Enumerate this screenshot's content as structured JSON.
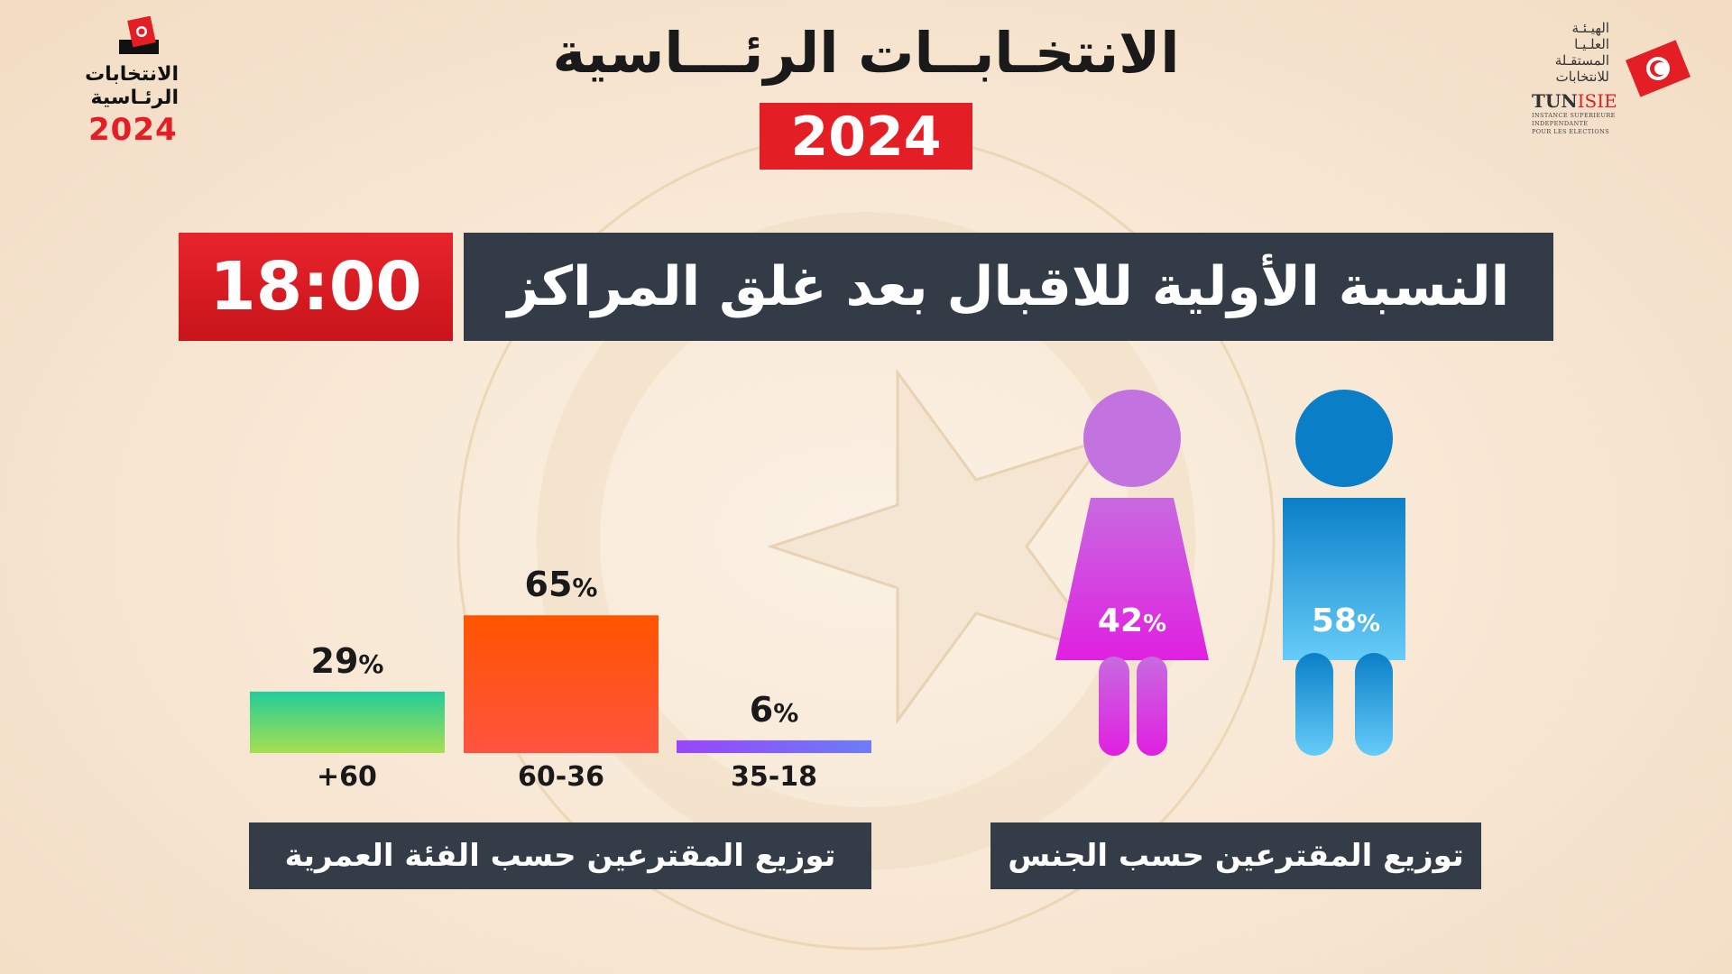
{
  "header": {
    "title": "الانتخـابــات الرئـــاسية",
    "year": "2024"
  },
  "logo_left": {
    "line1": "الانتخابات",
    "line2": "الرئـاسية",
    "year": "2024"
  },
  "logo_right": {
    "arabic_lines": [
      "الهيـئـة",
      "العلـيـا",
      "المستقـلة",
      "للانتخابات"
    ],
    "acronym_prefix": "TUN",
    "acronym_suffix": "ISIE",
    "french_lines": [
      "INSTANCE SUPERIEURE",
      "INDEPENDANTE",
      "POUR LES ELECTIONS"
    ]
  },
  "banner": {
    "time": "18:00",
    "headline": "النسبة الأولية للاقبال بعد غلق المراكز"
  },
  "age_caption": "توزيع المقترعين حسب الفئة العمرية",
  "gender_caption": "توزيع المقترعين حسب الجنس",
  "chart_data": [
    {
      "type": "bar",
      "categories": [
        "+60",
        "60-36",
        "35-18"
      ],
      "values": [
        29,
        65,
        6
      ],
      "value_labels": [
        "29",
        "65",
        "6"
      ],
      "unit": "%",
      "ylim": [
        0,
        100
      ],
      "bar_colors": [
        [
          "#22cc9a",
          "#a6e04e"
        ],
        [
          "#ff5500",
          "#ff5340"
        ],
        [
          "#9945ff",
          "#6b7df8"
        ]
      ]
    },
    {
      "type": "pie",
      "categories": [
        "female",
        "male"
      ],
      "values": [
        42,
        58
      ],
      "value_labels": [
        "42",
        "58"
      ],
      "unit": "%",
      "colors": [
        "#c85adf",
        "#1a8fd4"
      ]
    }
  ]
}
